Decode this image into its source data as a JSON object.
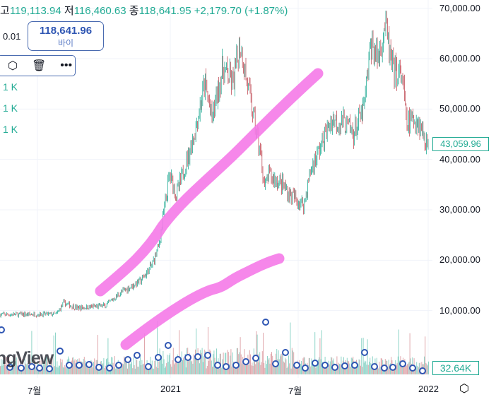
{
  "header": {
    "high_prefix": "고",
    "high": "119,113.94",
    "low_label": "저",
    "low": "116,460.63",
    "close_label": "종",
    "close": "118,641.95",
    "change": "+2,179.70 (+1.87%)"
  },
  "order": {
    "qty": "0.01",
    "buy_price": "118,641.96",
    "buy_label": "바이"
  },
  "toolbar": {
    "icons": [
      "settings-hex-icon",
      "trash-icon",
      "more-icon"
    ]
  },
  "side_labels": [
    "1 K",
    "1 K",
    "1 K"
  ],
  "watermark": "ngView",
  "chart_data": {
    "type": "candlestick",
    "price_axis": {
      "ticks": [
        70000,
        60000,
        50000,
        40000,
        30000,
        20000,
        10000
      ],
      "tick_labels": [
        "70,000.00",
        "60,000.00",
        "50,000.00",
        "40,000.00",
        "30,000.00",
        "20,000.00",
        "10,000.00"
      ],
      "range": [
        0,
        70000
      ]
    },
    "time_axis": {
      "labels": [
        "7월",
        "2021",
        "7월",
        "2022"
      ]
    },
    "current_price": "43,059.96",
    "volume_label": "32.64K",
    "price_path_days": [
      0,
      80,
      90,
      110,
      150,
      170,
      200,
      215,
      225,
      240,
      250,
      275,
      290,
      300,
      315,
      330,
      340,
      350,
      370,
      375,
      380,
      400,
      410,
      430,
      440,
      455,
      470,
      490,
      500,
      515,
      525,
      535,
      545,
      555,
      570,
      575,
      590,
      600,
      607
    ],
    "price_path": [
      9200,
      9300,
      11500,
      10500,
      11000,
      13500,
      16000,
      19000,
      23000,
      37000,
      33000,
      45000,
      55000,
      48000,
      58000,
      55000,
      63000,
      55000,
      40000,
      34000,
      37000,
      35000,
      33000,
      31000,
      38000,
      43000,
      48000,
      47000,
      45000,
      50000,
      63000,
      60000,
      67000,
      58000,
      56000,
      47000,
      48000,
      45000,
      42000
    ],
    "colors": {
      "up": "#22ab94",
      "down": "#c2505a",
      "drawing": "#f57ae8"
    }
  }
}
